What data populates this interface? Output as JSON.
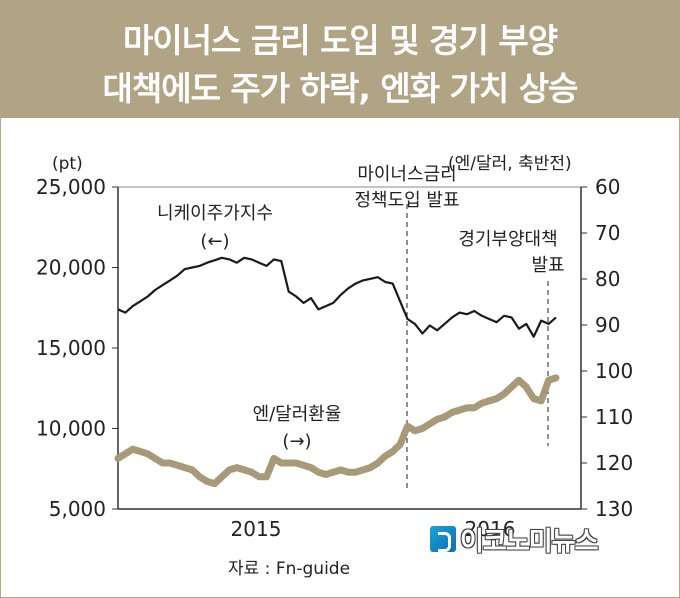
{
  "header": {
    "title_line1": "마이너스 금리 도입 및 경기 부양",
    "title_line2": "대책에도 주가 하락, 엔화 가치 상승"
  },
  "source": "자료 : Fn-guide",
  "logo_text": "이코노미뉴스",
  "colors": {
    "header_bg": "#b0a484",
    "nikkei": "#1a1a1a",
    "yen": "#a89a78"
  },
  "chart_data": {
    "type": "line",
    "left_axis": {
      "unit": "(pt)",
      "ticks": [
        "25,000",
        "20,000",
        "15,000",
        "10,000",
        "5,000"
      ],
      "range": [
        5000,
        25000
      ]
    },
    "right_axis": {
      "unit": "(엔/달러, 축반전)",
      "ticks": [
        "60",
        "70",
        "80",
        "90",
        "100",
        "110",
        "120",
        "130"
      ],
      "range": [
        60,
        130
      ],
      "inverted": true
    },
    "x_ticks": [
      "2015",
      "2016"
    ],
    "annotations": [
      {
        "name": "boj-negative-rate",
        "text_lines": [
          "마이너스금리",
          "정책도입 발표"
        ]
      },
      {
        "name": "stimulus",
        "text_lines": [
          "경기부양대책",
          "발표"
        ]
      }
    ],
    "series": [
      {
        "name": "니케이주가지수",
        "axis_note": "(←)",
        "axis": "left",
        "values": [
          17400,
          17200,
          17600,
          17900,
          18200,
          18600,
          18900,
          19200,
          19500,
          19900,
          20000,
          20100,
          20300,
          20450,
          20600,
          20500,
          20300,
          20600,
          20500,
          20300,
          20100,
          20500,
          20400,
          18500,
          18200,
          17800,
          18100,
          17400,
          17600,
          17800,
          18300,
          18700,
          19000,
          19200,
          19300,
          19400,
          19100,
          19000,
          17900,
          16800,
          16500,
          15900,
          16400,
          16100,
          16500,
          16900,
          17200,
          17100,
          17300,
          17000,
          16800,
          16600,
          17000,
          16900,
          16200,
          16500,
          15700,
          16700,
          16500,
          16900
        ]
      },
      {
        "name": "엔/달러환율",
        "axis_note": "(→)",
        "axis": "right",
        "values": [
          119,
          118,
          117,
          117.5,
          118,
          119,
          120,
          120,
          120.5,
          121,
          121.5,
          123,
          124,
          124.5,
          123,
          121.5,
          121,
          121.5,
          122,
          123,
          123,
          119,
          120,
          120,
          120,
          120.5,
          121,
          122,
          122.5,
          122,
          121.5,
          122,
          122,
          121.5,
          121,
          120,
          118.5,
          117.5,
          116,
          112,
          113,
          112.5,
          111.5,
          110.5,
          110,
          109,
          108.5,
          108,
          108,
          107,
          106.5,
          106,
          105,
          103.5,
          102,
          103.5,
          106,
          106.5,
          102,
          101.5
        ]
      }
    ]
  }
}
